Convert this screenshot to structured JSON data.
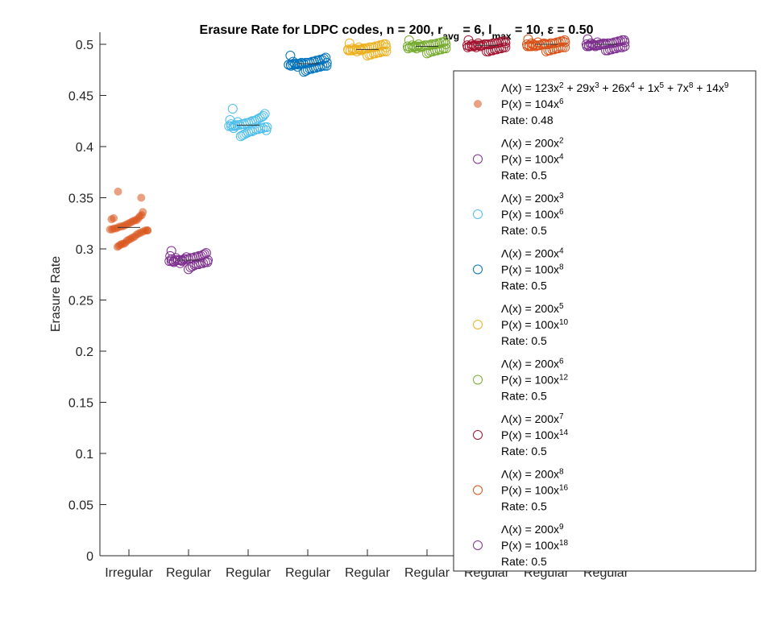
{
  "chart_data": {
    "type": "scatter",
    "title_parts": [
      {
        "t": "Erasure Rate for LDPC codes, n = 200, r"
      },
      {
        "t": "avg",
        "sub": true
      },
      {
        "t": " = 6, l"
      },
      {
        "t": "max",
        "sub": true
      },
      {
        "t": " = 10, ε = 0.50"
      }
    ],
    "ylabel": "Erasure Rate",
    "ylim": [
      0,
      0.5
    ],
    "yticks": [
      "0",
      "0.05",
      "0.1",
      "0.15",
      "0.2",
      "0.25",
      "0.3",
      "0.35",
      "0.4",
      "0.45",
      "0.5"
    ],
    "ytick_values": [
      0,
      0.05,
      0.1,
      0.15,
      0.2,
      0.25,
      0.3,
      0.35,
      0.4,
      0.45,
      0.5
    ],
    "categories": [
      "Irregular",
      "Regular",
      "Regular",
      "Regular",
      "Regular",
      "Regular",
      "Regular",
      "Regular",
      "Regular"
    ],
    "series": [
      {
        "color": "#D95319",
        "filled": true,
        "mean": 0.321,
        "values": [
          0.356,
          0.35,
          0.336,
          0.333,
          0.332,
          0.33,
          0.328,
          0.328,
          0.327,
          0.326,
          0.325,
          0.324,
          0.323,
          0.322,
          0.322,
          0.321,
          0.32,
          0.32,
          0.319,
          0.319,
          0.318,
          0.318,
          0.317,
          0.316,
          0.315,
          0.314,
          0.312,
          0.311,
          0.31,
          0.309,
          0.308,
          0.306,
          0.305,
          0.305,
          0.304,
          0.303,
          0.302,
          0.33,
          0.329,
          0.318
        ],
        "legend": [
          [
            {
              "t": "Λ(x) = 123x"
            },
            {
              "t": "2",
              "sup": true
            },
            {
              "t": " + 29x"
            },
            {
              "t": "3",
              "sup": true
            },
            {
              "t": " + 26x"
            },
            {
              "t": "4",
              "sup": true
            },
            {
              "t": " + 1x"
            },
            {
              "t": "5",
              "sup": true
            },
            {
              "t": " + 7x"
            },
            {
              "t": "8",
              "sup": true
            },
            {
              "t": " + 14x"
            },
            {
              "t": "9",
              "sup": true
            }
          ],
          [
            {
              "t": "P(x) = 104x"
            },
            {
              "t": "6",
              "sup": true
            }
          ],
          [
            {
              "t": "Rate: 0.48"
            }
          ]
        ]
      },
      {
        "color": "#7E2F8E",
        "filled": false,
        "mean": 0.289,
        "values": [
          0.298,
          0.296,
          0.295,
          0.294,
          0.293,
          0.293,
          0.292,
          0.292,
          0.291,
          0.291,
          0.29,
          0.29,
          0.29,
          0.289,
          0.289,
          0.289,
          0.289,
          0.288,
          0.288,
          0.288,
          0.287,
          0.287,
          0.286,
          0.286,
          0.285,
          0.285,
          0.284,
          0.283,
          0.282,
          0.28,
          0.292,
          0.29,
          0.288,
          0.286,
          0.289,
          0.291,
          0.287,
          0.29,
          0.293,
          0.289
        ],
        "legend": [
          [
            {
              "t": "Λ(x) = 200x"
            },
            {
              "t": "2",
              "sup": true
            }
          ],
          [
            {
              "t": "P(x) = 100x"
            },
            {
              "t": "4",
              "sup": true
            }
          ],
          [
            {
              "t": "Rate: 0.5"
            }
          ]
        ]
      },
      {
        "color": "#4DBEEE",
        "filled": false,
        "mean": 0.421,
        "values": [
          0.437,
          0.432,
          0.43,
          0.429,
          0.428,
          0.427,
          0.426,
          0.425,
          0.425,
          0.424,
          0.423,
          0.423,
          0.422,
          0.422,
          0.421,
          0.421,
          0.421,
          0.42,
          0.42,
          0.42,
          0.419,
          0.419,
          0.418,
          0.418,
          0.417,
          0.417,
          0.416,
          0.415,
          0.415,
          0.414,
          0.413,
          0.412,
          0.411,
          0.41,
          0.424,
          0.42,
          0.418,
          0.422,
          0.426,
          0.416
        ],
        "legend": [
          [
            {
              "t": "Λ(x) = 200x"
            },
            {
              "t": "3",
              "sup": true
            }
          ],
          [
            {
              "t": "P(x) = 100x"
            },
            {
              "t": "6",
              "sup": true
            }
          ],
          [
            {
              "t": "Rate: 0.5"
            }
          ]
        ]
      },
      {
        "color": "#0072BD",
        "filled": false,
        "mean": 0.481,
        "values": [
          0.489,
          0.487,
          0.486,
          0.485,
          0.485,
          0.484,
          0.484,
          0.483,
          0.483,
          0.482,
          0.482,
          0.482,
          0.481,
          0.481,
          0.481,
          0.481,
          0.48,
          0.48,
          0.48,
          0.48,
          0.479,
          0.479,
          0.479,
          0.478,
          0.478,
          0.477,
          0.477,
          0.476,
          0.476,
          0.475,
          0.474,
          0.473,
          0.482,
          0.48,
          0.478,
          0.481,
          0.483,
          0.479,
          0.48,
          0.482
        ],
        "legend": [
          [
            {
              "t": "Λ(x) = 200x"
            },
            {
              "t": "4",
              "sup": true
            }
          ],
          [
            {
              "t": "P(x) = 100x"
            },
            {
              "t": "8",
              "sup": true
            }
          ],
          [
            {
              "t": "Rate: 0.5"
            }
          ]
        ]
      },
      {
        "color": "#EDB120",
        "filled": false,
        "mean": 0.495,
        "values": [
          0.501,
          0.5,
          0.5,
          0.499,
          0.499,
          0.498,
          0.498,
          0.497,
          0.497,
          0.497,
          0.496,
          0.496,
          0.496,
          0.495,
          0.495,
          0.495,
          0.495,
          0.494,
          0.494,
          0.494,
          0.493,
          0.493,
          0.493,
          0.492,
          0.492,
          0.491,
          0.491,
          0.49,
          0.49,
          0.489,
          0.496,
          0.495,
          0.494,
          0.497,
          0.493,
          0.495,
          0.496,
          0.494,
          0.495,
          0.497
        ],
        "legend": [
          [
            {
              "t": "Λ(x) = 200x"
            },
            {
              "t": "5",
              "sup": true
            }
          ],
          [
            {
              "t": "P(x) = 100x"
            },
            {
              "t": "10",
              "sup": true
            }
          ],
          [
            {
              "t": "Rate: 0.5"
            }
          ]
        ]
      },
      {
        "color": "#77AC30",
        "filled": false,
        "mean": 0.498,
        "values": [
          0.504,
          0.503,
          0.502,
          0.502,
          0.501,
          0.501,
          0.5,
          0.5,
          0.5,
          0.499,
          0.499,
          0.499,
          0.498,
          0.498,
          0.498,
          0.498,
          0.497,
          0.497,
          0.497,
          0.496,
          0.496,
          0.496,
          0.495,
          0.495,
          0.494,
          0.494,
          0.493,
          0.493,
          0.492,
          0.491,
          0.499,
          0.498,
          0.497,
          0.5,
          0.496,
          0.498,
          0.499,
          0.497,
          0.498,
          0.5
        ],
        "legend": [
          [
            {
              "t": "Λ(x) = 200x"
            },
            {
              "t": "6",
              "sup": true
            }
          ],
          [
            {
              "t": "P(x) = 100x"
            },
            {
              "t": "12",
              "sup": true
            }
          ],
          [
            {
              "t": "Rate: 0.5"
            }
          ]
        ]
      },
      {
        "color": "#A2142F",
        "filled": false,
        "mean": 0.499,
        "values": [
          0.504,
          0.503,
          0.503,
          0.502,
          0.502,
          0.501,
          0.501,
          0.501,
          0.5,
          0.5,
          0.5,
          0.5,
          0.499,
          0.499,
          0.499,
          0.499,
          0.498,
          0.498,
          0.498,
          0.497,
          0.497,
          0.497,
          0.496,
          0.496,
          0.495,
          0.495,
          0.494,
          0.494,
          0.493,
          0.493,
          0.5,
          0.499,
          0.498,
          0.501,
          0.497,
          0.499,
          0.5,
          0.498,
          0.499,
          0.501
        ],
        "legend": [
          [
            {
              "t": "Λ(x) = 200x"
            },
            {
              "t": "7",
              "sup": true
            }
          ],
          [
            {
              "t": "P(x) = 100x"
            },
            {
              "t": "14",
              "sup": true
            }
          ],
          [
            {
              "t": "Rate: 0.5"
            }
          ]
        ]
      },
      {
        "color": "#D95319",
        "filled": false,
        "mean": 0.5,
        "values": [
          0.505,
          0.504,
          0.503,
          0.503,
          0.502,
          0.502,
          0.501,
          0.501,
          0.501,
          0.5,
          0.5,
          0.5,
          0.5,
          0.499,
          0.499,
          0.499,
          0.499,
          0.498,
          0.498,
          0.498,
          0.497,
          0.497,
          0.497,
          0.496,
          0.496,
          0.495,
          0.495,
          0.494,
          0.494,
          0.493,
          0.501,
          0.5,
          0.499,
          0.502,
          0.498,
          0.5,
          0.501,
          0.499,
          0.5,
          0.502
        ],
        "legend": [
          [
            {
              "t": "Λ(x) = 200x"
            },
            {
              "t": "8",
              "sup": true
            }
          ],
          [
            {
              "t": "P(x) = 100x"
            },
            {
              "t": "16",
              "sup": true
            }
          ],
          [
            {
              "t": "Rate: 0.5"
            }
          ]
        ]
      },
      {
        "color": "#7E2F8E",
        "filled": false,
        "mean": 0.5,
        "values": [
          0.505,
          0.504,
          0.504,
          0.503,
          0.503,
          0.502,
          0.502,
          0.501,
          0.501,
          0.501,
          0.5,
          0.5,
          0.5,
          0.5,
          0.499,
          0.499,
          0.499,
          0.499,
          0.498,
          0.498,
          0.498,
          0.497,
          0.497,
          0.497,
          0.496,
          0.496,
          0.495,
          0.495,
          0.494,
          0.494,
          0.501,
          0.5,
          0.499,
          0.502,
          0.498,
          0.5,
          0.501,
          0.499,
          0.5,
          0.502
        ],
        "legend": [
          [
            {
              "t": "Λ(x) = 200x"
            },
            {
              "t": "9",
              "sup": true
            }
          ],
          [
            {
              "t": "P(x) = 100x"
            },
            {
              "t": "18",
              "sup": true
            }
          ],
          [
            {
              "t": "Rate: 0.5"
            }
          ]
        ]
      }
    ],
    "legend_location": "top-right",
    "grid": false
  }
}
